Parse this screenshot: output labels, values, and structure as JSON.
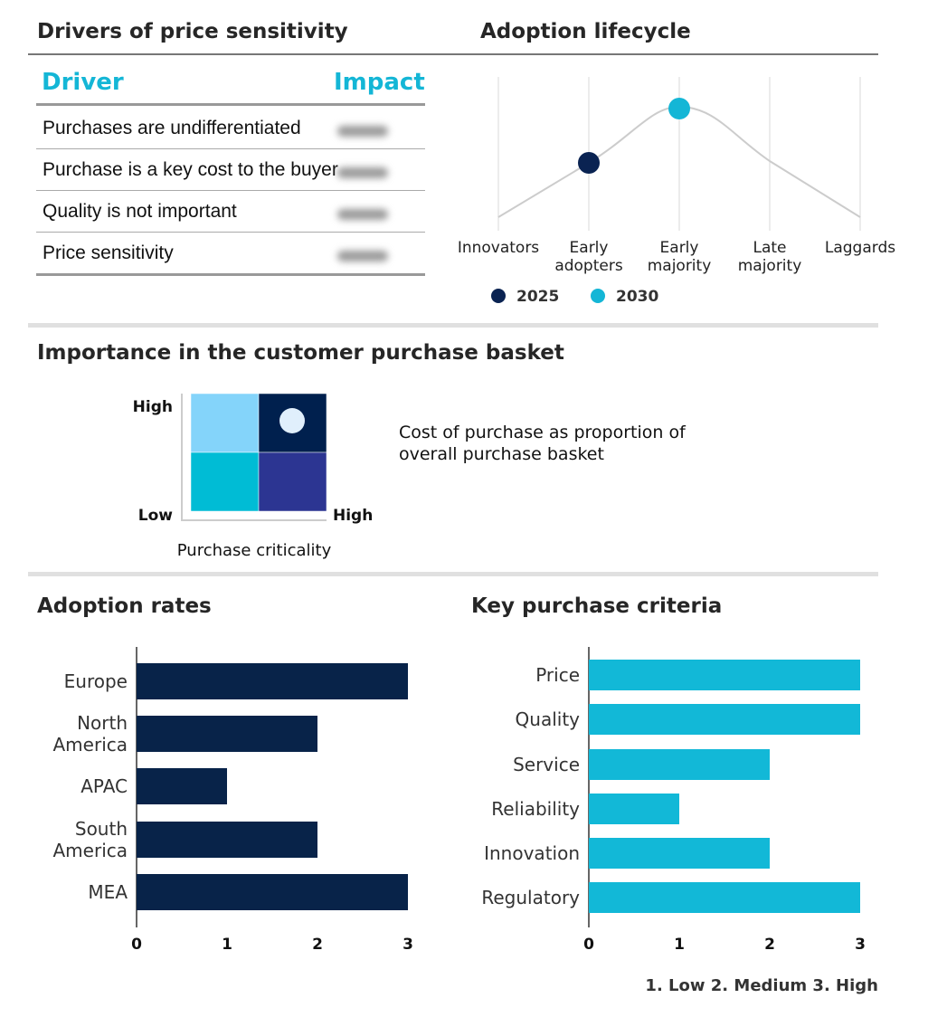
{
  "drivers": {
    "title": "Drivers of price sensitivity",
    "col_driver": "Driver",
    "col_impact": "Impact",
    "rows": [
      "Purchases are undifferentiated",
      "Purchase is a key cost to the buyer",
      "Quality is not important",
      "Price sensitivity"
    ]
  },
  "chart_data": [
    {
      "type": "line",
      "title": "Adoption lifecycle",
      "categories": [
        "Innovators",
        "Early adopters",
        "Early majority",
        "Late majority",
        "Laggards"
      ],
      "category_lines": [
        [
          "Innovators"
        ],
        [
          "Early",
          "adopters"
        ],
        [
          "Early",
          "majority"
        ],
        [
          "Late",
          "majority"
        ],
        [
          "Laggards"
        ]
      ],
      "curve": [
        0,
        0.5,
        1,
        0.52,
        0
      ],
      "markers": [
        {
          "name": "2025",
          "category": "Early adopters",
          "color": "#0a2352"
        },
        {
          "name": "2030",
          "category": "Early majority",
          "color": "#14b6d6"
        }
      ],
      "legend": "bottom",
      "grid": true
    },
    {
      "type": "heatmap",
      "title": "Importance in the customer purchase basket",
      "xlabel": "Purchase criticality",
      "ylabel": "Cost of purchase as proportion of overall purchase basket",
      "ylabel_lines": [
        "Cost of purchase as proportion of",
        "overall purchase basket"
      ],
      "y_high": "High",
      "y_low": "Low",
      "x_high": "High",
      "cells": [
        {
          "pos": "top-left",
          "color": "#84d4fa"
        },
        {
          "pos": "top-right",
          "color": "#00204e"
        },
        {
          "pos": "bottom-left",
          "color": "#00bcd5"
        },
        {
          "pos": "bottom-right",
          "color": "#2c3592"
        }
      ],
      "marker": {
        "cell": "top-right",
        "color": "#e0effc"
      }
    },
    {
      "type": "bar",
      "orientation": "horizontal",
      "title": "Adoption rates",
      "categories": [
        "Europe",
        "North America",
        "APAC",
        "South America",
        "MEA"
      ],
      "category_lines": [
        [
          "Europe"
        ],
        [
          "North",
          "America"
        ],
        [
          "APAC"
        ],
        [
          "South",
          "America"
        ],
        [
          "MEA"
        ]
      ],
      "values": [
        3,
        2,
        1,
        2,
        3
      ],
      "xlim": [
        0,
        3
      ],
      "xticks": [
        "0",
        "1",
        "2",
        "3"
      ],
      "color": "#082349"
    },
    {
      "type": "bar",
      "orientation": "horizontal",
      "title": "Key purchase criteria",
      "categories": [
        "Price",
        "Quality",
        "Service",
        "Reliability",
        "Innovation",
        "Regulatory"
      ],
      "values": [
        3,
        3,
        2,
        1,
        2,
        3
      ],
      "xlim": [
        0,
        3
      ],
      "xticks": [
        "0",
        "1",
        "2",
        "3"
      ],
      "color": "#12b8d7",
      "scale_legend": "1. Low   2. Medium  3. High"
    }
  ]
}
